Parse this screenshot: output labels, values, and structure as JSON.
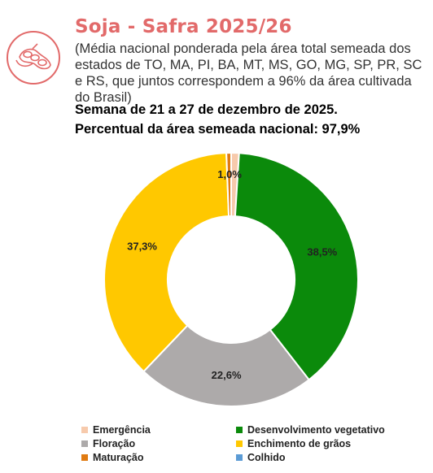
{
  "header": {
    "title": "Soja - Safra 2025/26",
    "subtitle": "(Média nacional ponderada pela área total semeada dos estados de TO, MA, PI, BA, MT, MS, GO, MG, SP, PR, SC e RS, que juntos correspondem a 96% da área cultivada do Brasil)",
    "week": "Semana de 21 a 27 de dezembro de 2025.",
    "percent": "Percentual da área semeada nacional: 97,9%"
  },
  "logo_icon": "soybean-pod-icon",
  "chart_data": {
    "type": "pie",
    "donut": true,
    "slices": [
      {
        "name": "Emergência",
        "value": 1.0,
        "label": "1,0%",
        "color": "#f7caac"
      },
      {
        "name": "Desenvolvimento vegetativo",
        "value": 38.5,
        "label": "38,5%",
        "color": "#0b8a0b"
      },
      {
        "name": "Floração",
        "value": 22.6,
        "label": "22,6%",
        "color": "#adaaaa"
      },
      {
        "name": "Enchimento de grãos",
        "value": 37.3,
        "label": "37,3%",
        "color": "#ffc800"
      },
      {
        "name": "Maturação",
        "value": 0.6,
        "label": "",
        "color": "#e07b12"
      },
      {
        "name": "Colhido",
        "value": 0.0,
        "label": "",
        "color": "#5b9bd5"
      }
    ],
    "legend_position": "bottom"
  },
  "legend": [
    {
      "label": "Emergência",
      "color": "#f7caac"
    },
    {
      "label": "Desenvolvimento vegetativo",
      "color": "#0b8a0b"
    },
    {
      "label": "Floração",
      "color": "#adaaaa"
    },
    {
      "label": "Enchimento de grãos",
      "color": "#ffc800"
    },
    {
      "label": "Maturação",
      "color": "#e07b12"
    },
    {
      "label": "Colhido",
      "color": "#5b9bd5"
    }
  ]
}
